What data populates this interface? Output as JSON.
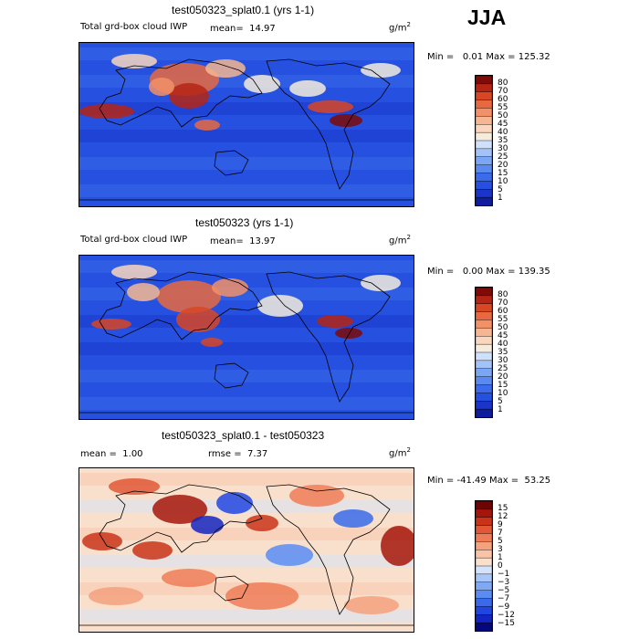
{
  "season": "JJA",
  "units_base": "g/m",
  "units_exp": "2",
  "colors": {
    "abs_scale": [
      "#0d1d9e",
      "#1a35c8",
      "#2550e0",
      "#3a6bea",
      "#5a8af0",
      "#7ba6f4",
      "#a3c2f8",
      "#cfe0fb",
      "#f5ecdc",
      "#f9d6bd",
      "#f6b691",
      "#f29168",
      "#e8693f",
      "#d84724",
      "#b52414",
      "#7e0b07"
    ],
    "diff_scale": [
      "#05087a",
      "#1426c0",
      "#2146e0",
      "#3a6aea",
      "#5a8cf2",
      "#7fa9f5",
      "#a9c6f8",
      "#d4e3fb",
      "#f9e0cd",
      "#f8c3a7",
      "#f5a17e",
      "#ee7c57",
      "#e05836",
      "#c93419",
      "#a4160b",
      "#6e0505"
    ]
  },
  "charts": [
    {
      "title": "test050323_splat0.1 (yrs 1-1)",
      "label": "Total grd-box cloud IWP",
      "mean_label": "mean=",
      "mean_value": "14.97",
      "min_label": "Min =",
      "min_value": "0.01",
      "max_label": "Max =",
      "max_value": "125.32"
    },
    {
      "title": "test050323 (yrs 1-1)",
      "label": "Total grd-box cloud IWP",
      "mean_label": "mean=",
      "mean_value": "13.97",
      "min_label": "Min =",
      "min_value": "0.00",
      "max_label": "Max =",
      "max_value": "139.35"
    },
    {
      "title": "test050323_splat0.1 - test050323",
      "label": "",
      "mean_label": "mean =",
      "mean_value": "1.00",
      "rmse_label": "rmse =",
      "rmse_value": "7.37",
      "min_label": "Min =",
      "min_value": "-41.49",
      "max_label": "Max =",
      "max_value": "53.25"
    }
  ],
  "chart_data": [
    {
      "type": "heatmap",
      "title": "test050323_splat0.1 (yrs 1-1)",
      "variable": "Total grd-box cloud IWP",
      "units": "g/m^2",
      "mean": 14.97,
      "min": 0.01,
      "max": 125.32,
      "contour_levels": [
        1,
        5,
        10,
        15,
        20,
        25,
        30,
        35,
        40,
        45,
        50,
        55,
        60,
        70,
        80
      ],
      "colorbar_ticks": [
        "80",
        "70",
        "60",
        "55",
        "50",
        "45",
        "40",
        "35",
        "30",
        "25",
        "20",
        "15",
        "10",
        "5",
        "1"
      ]
    },
    {
      "type": "heatmap",
      "title": "test050323 (yrs 1-1)",
      "variable": "Total grd-box cloud IWP",
      "units": "g/m^2",
      "mean": 13.97,
      "min": 0.0,
      "max": 139.35,
      "contour_levels": [
        1,
        5,
        10,
        15,
        20,
        25,
        30,
        35,
        40,
        45,
        50,
        55,
        60,
        70,
        80
      ],
      "colorbar_ticks": [
        "80",
        "70",
        "60",
        "55",
        "50",
        "45",
        "40",
        "35",
        "30",
        "25",
        "20",
        "15",
        "10",
        "5",
        "1"
      ]
    },
    {
      "type": "heatmap",
      "title": "test050323_splat0.1 - test050323",
      "units": "g/m^2",
      "mean": 1.0,
      "rmse": 7.37,
      "min": -41.49,
      "max": 53.25,
      "contour_levels": [
        -15,
        -12,
        -9,
        -7,
        -5,
        -3,
        -1,
        0,
        1,
        3,
        5,
        7,
        9,
        12,
        15
      ],
      "colorbar_ticks": [
        "15",
        "12",
        "9",
        "7",
        "5",
        "3",
        "1",
        "0",
        "−1",
        "−3",
        "−5",
        "−7",
        "−9",
        "−12",
        "−15"
      ]
    }
  ]
}
